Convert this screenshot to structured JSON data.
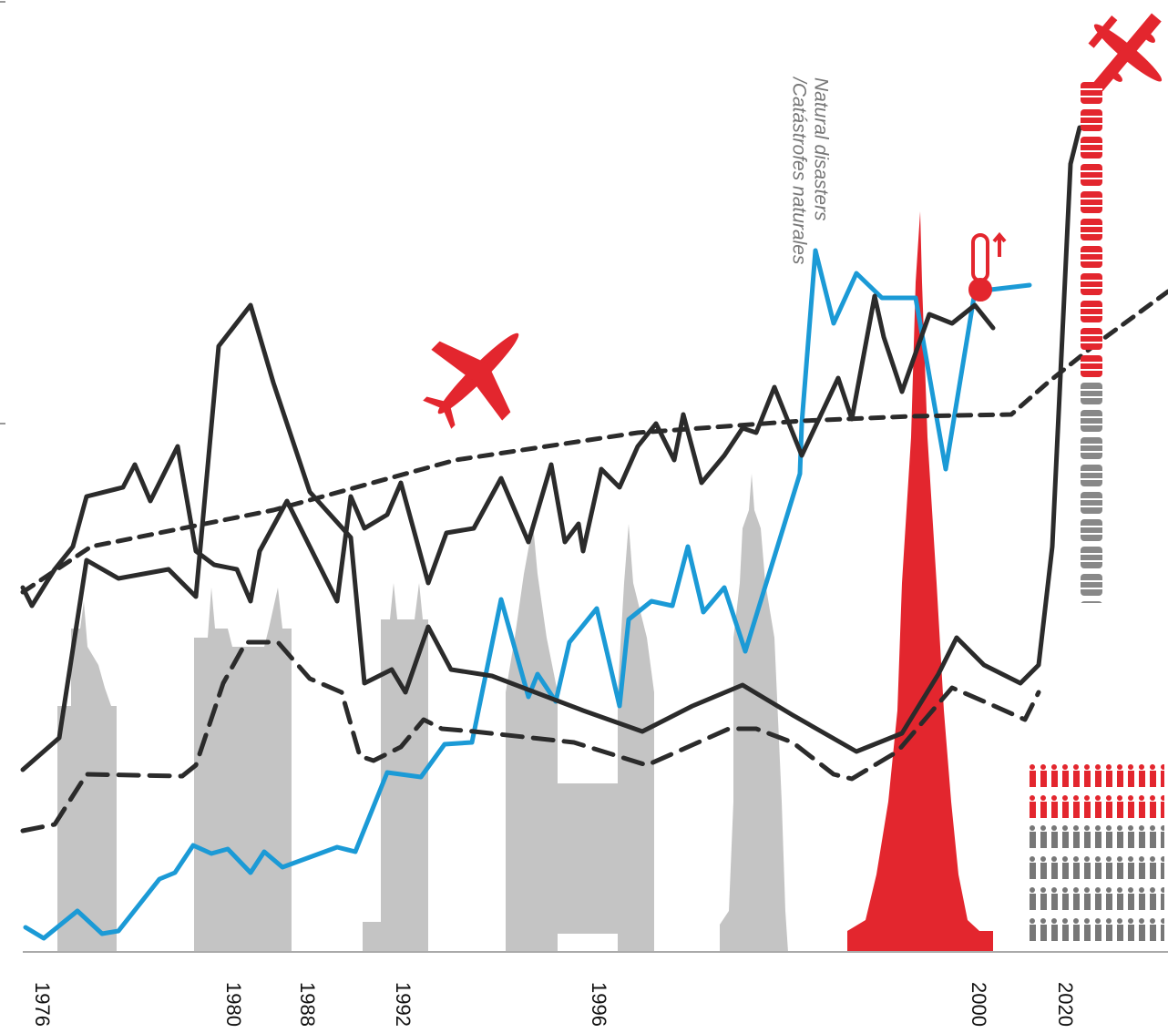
{
  "x_labels": [
    "1976",
    "1980",
    "1988",
    "1992",
    "1996",
    "2000",
    "2020"
  ],
  "annotation": [
    "Natural disasters",
    "/Catástrofes naturales"
  ]
}
